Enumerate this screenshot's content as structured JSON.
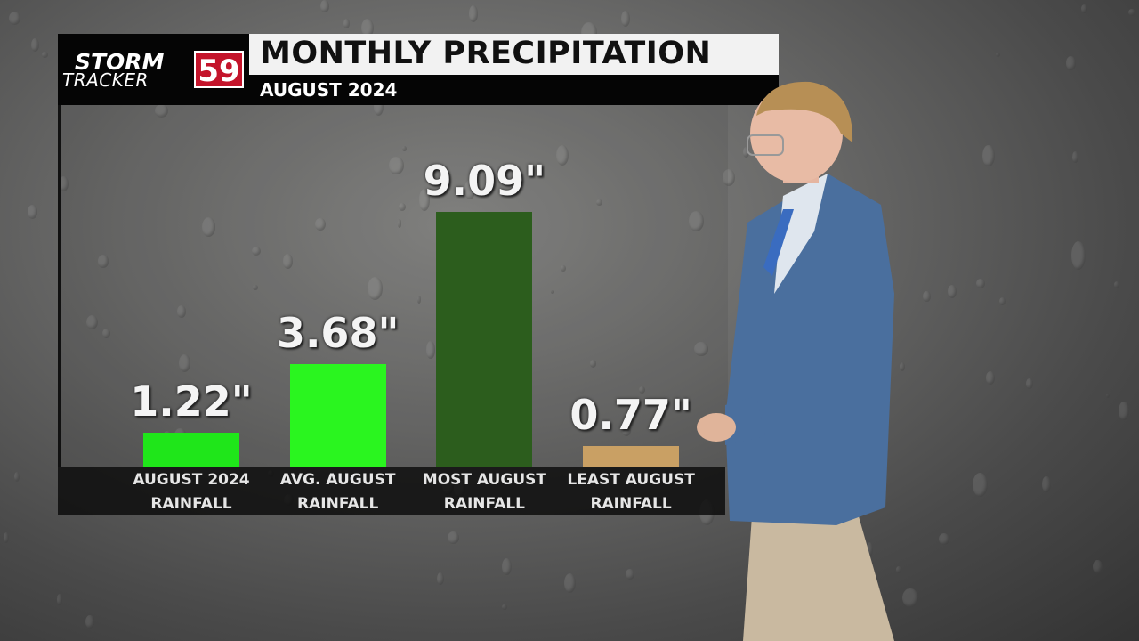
{
  "chart_data": {
    "type": "bar",
    "title": "MONTHLY PRECIPITATION",
    "subtitle": "AUGUST 2024",
    "categories": [
      "AUGUST 2024 RAINFALL",
      "AVG. AUGUST RAINFALL",
      "MOST AUGUST RAINFALL",
      "LEAST AUGUST RAINFALL"
    ],
    "values": [
      1.22,
      3.68,
      9.09,
      0.77
    ],
    "value_labels": [
      "1.22\"",
      "3.68\"",
      "9.09\"",
      "0.77\""
    ],
    "colors": [
      "#1fe61a",
      "#2af51f",
      "#2c5d1d",
      "#c9a064"
    ]
  },
  "logo": {
    "line1": "STORM",
    "line2": "TRACKER",
    "number": "59"
  }
}
